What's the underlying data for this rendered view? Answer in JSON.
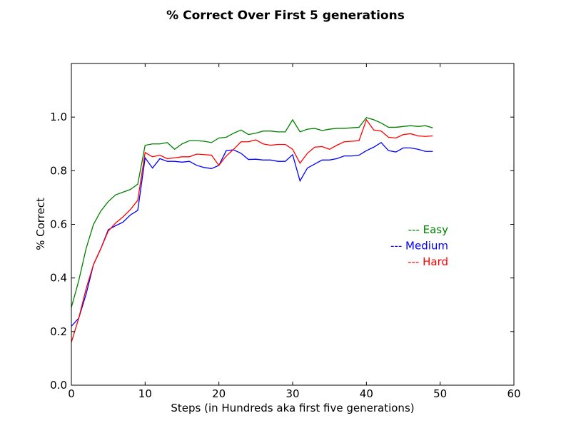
{
  "chart_data": {
    "type": "line",
    "title": "% Correct Over First 5 generations",
    "xlabel": "Steps (in Hundreds aka first five generations)",
    "ylabel": "% Correct",
    "xlim": [
      0,
      60
    ],
    "ylim": [
      0,
      1.2
    ],
    "xticks": [
      0,
      10,
      20,
      30,
      40,
      50,
      60
    ],
    "xtick_labels": [
      "0",
      "10",
      "20",
      "30",
      "40",
      "50",
      "60"
    ],
    "yticks": [
      0.0,
      0.2,
      0.4,
      0.6,
      0.8,
      1.0
    ],
    "ytick_labels": [
      "0.0",
      "0.2",
      "0.4",
      "0.6",
      "0.8",
      "1.0"
    ],
    "grid": false,
    "legend_position": "center-right",
    "x": [
      0,
      1,
      2,
      3,
      4,
      5,
      6,
      7,
      8,
      9,
      10,
      11,
      12,
      13,
      14,
      15,
      16,
      17,
      18,
      19,
      20,
      21,
      22,
      23,
      24,
      25,
      26,
      27,
      28,
      29,
      30,
      31,
      32,
      33,
      34,
      35,
      36,
      37,
      38,
      39,
      40,
      41,
      42,
      43,
      44,
      45,
      46,
      47,
      48,
      49
    ],
    "series": [
      {
        "name": "--- Easy",
        "color": "#008000",
        "values": [
          0.29,
          0.39,
          0.51,
          0.6,
          0.65,
          0.685,
          0.71,
          0.72,
          0.73,
          0.75,
          0.895,
          0.9,
          0.9,
          0.905,
          0.88,
          0.9,
          0.912,
          0.912,
          0.91,
          0.905,
          0.922,
          0.925,
          0.94,
          0.952,
          0.935,
          0.94,
          0.948,
          0.948,
          0.945,
          0.945,
          0.99,
          0.945,
          0.955,
          0.958,
          0.95,
          0.955,
          0.958,
          0.958,
          0.96,
          0.962,
          0.998,
          0.99,
          0.978,
          0.962,
          0.962,
          0.965,
          0.968,
          0.965,
          0.968,
          0.96
        ]
      },
      {
        "name": "--- Medium",
        "color": "#0000ff",
        "values": [
          0.22,
          0.25,
          0.34,
          0.45,
          0.51,
          0.58,
          0.595,
          0.608,
          0.635,
          0.652,
          0.848,
          0.81,
          0.845,
          0.835,
          0.835,
          0.832,
          0.835,
          0.82,
          0.812,
          0.808,
          0.82,
          0.875,
          0.878,
          0.865,
          0.842,
          0.843,
          0.84,
          0.84,
          0.835,
          0.835,
          0.86,
          0.762,
          0.81,
          0.825,
          0.84,
          0.84,
          0.845,
          0.855,
          0.855,
          0.858,
          0.875,
          0.888,
          0.905,
          0.875,
          0.87,
          0.885,
          0.885,
          0.88,
          0.872,
          0.872
        ]
      },
      {
        "name": "--- Hard",
        "color": "#ff0000",
        "values": [
          0.16,
          0.25,
          0.36,
          0.45,
          0.51,
          0.575,
          0.605,
          0.628,
          0.655,
          0.69,
          0.868,
          0.852,
          0.858,
          0.845,
          0.848,
          0.852,
          0.852,
          0.862,
          0.86,
          0.858,
          0.82,
          0.855,
          0.88,
          0.908,
          0.908,
          0.915,
          0.9,
          0.895,
          0.898,
          0.898,
          0.88,
          0.828,
          0.865,
          0.888,
          0.89,
          0.88,
          0.895,
          0.908,
          0.91,
          0.912,
          0.99,
          0.952,
          0.948,
          0.925,
          0.922,
          0.935,
          0.938,
          0.93,
          0.928,
          0.93
        ]
      }
    ]
  }
}
